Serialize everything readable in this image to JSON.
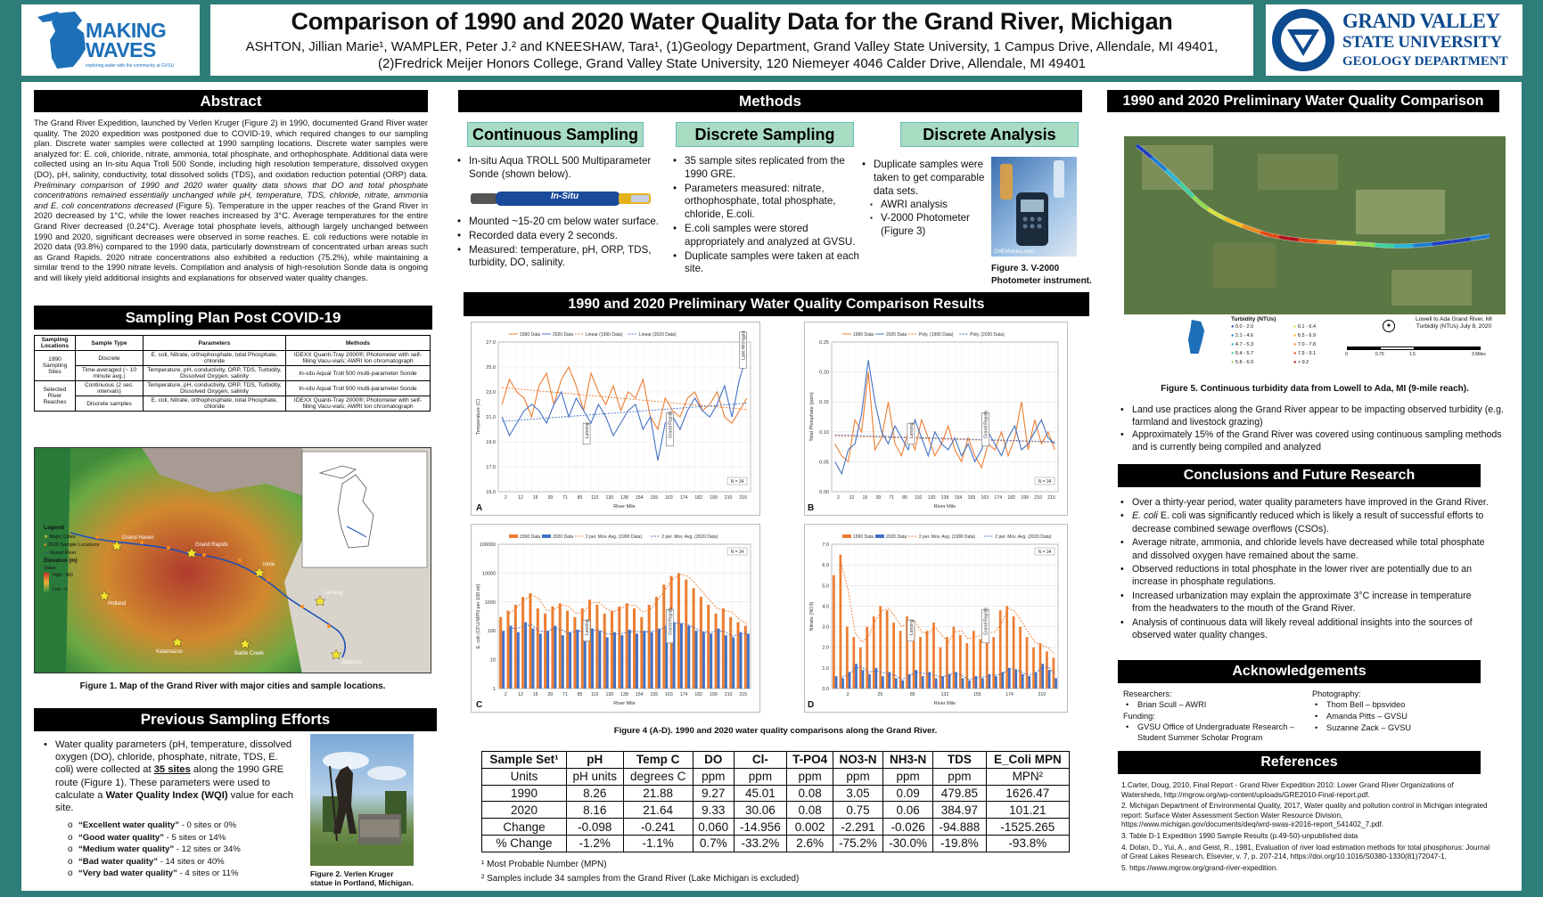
{
  "header": {
    "title": "Comparison of 1990 and 2020 Water Quality Data for the Grand River, Michigan",
    "authors": "ASHTON, Jillian Marie¹, WAMPLER, Peter J.² and KNEESHAW, Tara¹, (1)Geology Department, Grand Valley State University, 1 Campus Drive, Allendale, MI 49401,",
    "affil": "(2)Fredrick Meijer Honors College, Grand Valley State University, 120 Niemeyer 4046 Calder Drive, Allendale, MI 49401",
    "logo_left": "MAKING WAVES",
    "logo_left_small": "exploring water with the community at GVSU",
    "logo_right_1": "GRAND VALLEY",
    "logo_right_2": "STATE UNIVERSITY",
    "logo_right_3": "GEOLOGY DEPARTMENT"
  },
  "abstract": {
    "heading": "Abstract",
    "p1": "The Grand River Expedition, launched by Verlen Kruger (Figure 2) in 1990, documented Grand River water quality. The 2020 expedition was postponed due to COVID-19, which required changes to our sampling plan. Discrete water samples were collected at 1990 sampling locations. Discrete water samples were analyzed for: E. coli, chloride, nitrate, ammonia, total phosphate, and orthophosphate. Additional data were collected using an In-situ Aqua Troll 500 Sonde, including high resolution temperature, dissolved oxygen (DO), pH, salinity, conductivity, total dissolved solids (TDS), and oxidation reduction potential (ORP) data.",
    "p2": "Preliminary comparison of 1990 and 2020 water quality data shows that DO and total phosphate concentrations remained essentially unchanged while pH, temperature, TDS, chloride, nitrate, ammonia and E. coli concentrations decreased",
    "p3": "(Figure 5). Temperature in the upper reaches of the Grand River in 2020 decreased by 1°C, while the lower reaches increased by 3°C. Average temperatures for the entire Grand River decreased (0.24°C). Average total phosphate levels, although largely unchanged between 1990 and 2020, significant decreases were observed in some reaches. E. coli reductions were notable in 2020 data (93.8%) compared to the 1990 data, particularly downstream of concentrated urban areas such as Grand Rapids. 2020 nitrate concentrations also exhibited a reduction (75.2%), while maintaining a similar trend to the 1990 nitrate levels. Compilation and analysis of high-resolution Sonde data is ongoing and will likely yield additional insights and explanations for observed water quality changes."
  },
  "plan": {
    "heading": "Sampling Plan Post COVID-19",
    "cols": [
      "Sampling Locations",
      "Sample Type",
      "Parameters",
      "Methods"
    ],
    "g1": "1990 Sampling Sites",
    "g2": "Selected River Reaches",
    "r1": [
      "Discrete",
      "E. coli, Nitrate, orthophosphate, total Phosphate, chloride",
      "IDEXX Quanti-Tray 2000®; Photometer with self-filling Vacu-vials; AWRI Ion chromatograph"
    ],
    "r2": [
      "Time-averaged (~ 10 minute avg.)",
      "Temperature, pH, conductivity, ORP, TDS, Turbidity, Dissolved Oxygen, salinity",
      "In-situ Aqual Troll 500 multi-parameter Sonde"
    ],
    "r3": [
      "Continuous (2 sec. intervals)",
      "Temperature, pH, conductivity, ORP, TDS, Turbidity, Dissolved Oxygen, salinity",
      "In-situ Aqual Troll 500 multi-parameter Sonde"
    ],
    "r4": [
      "Discrete samples",
      "E. coli, Nitrate, orthophosphate, total Phosphate, chloride",
      "IDEXX Quanti-Tray 2000®; Photometer with self-filling Vacu-vials; AWRI Ion chromatograph"
    ]
  },
  "fig1": {
    "caption": "Figure 1. Map of the Grand River with major cities and sample locations.",
    "legend_title": "Legend",
    "legend_items": [
      "Major Cities",
      "2020 Sample Locations",
      "Grand River"
    ],
    "elev_title": "Elevation (m)",
    "elev_value": "Value",
    "elev_high": "High : 460",
    "elev_low": "Low : 0",
    "cities": [
      "Grand Haven",
      "Grand Rapids",
      "Ionia",
      "Lansing",
      "Holland",
      "Kalamazoo",
      "Battle Creek",
      "Jackson"
    ]
  },
  "prev": {
    "heading": "Previous Sampling Efforts",
    "p_a": "Water quality parameters (pH, temperature, dissolved oxygen (DO), chloride, phosphate, nitrate, TDS, E. coli) were collected at ",
    "p_b": "35 sites",
    "p_c": " along the 1990 GRE route (Figure 1). These parameters were used to calculate a ",
    "p_d": "Water Quality Index (WQI)",
    "p_e": " value for each site.",
    "items": [
      {
        "q": "“Excellent water quality”",
        "r": " - 0 sites or 0%"
      },
      {
        "q": "“Good water quality”",
        "r": " - 5 sites or 14%"
      },
      {
        "q": "“Medium water quality”",
        "r": " - 12 sites or 34%"
      },
      {
        "q": "“Bad water quality”",
        "r": " - 14 sites or 40%"
      },
      {
        "q": "“Very bad water quality”",
        "r": " - 4 sites or 11%"
      }
    ],
    "fig2_caption": "Figure 2. Verlen Kruger statue in Portland, Michigan."
  },
  "methods": {
    "heading": "Methods",
    "cont_h": "Continuous Sampling",
    "disc_h": "Discrete Sampling",
    "anal_h": "Discrete Analysis",
    "cont_1": "In-situ Aqua TROLL 500 Multiparameter Sonde (shown below).",
    "sonde_label": "In-Situ",
    "cont_items": [
      "Mounted ~15-20 cm below water surface.",
      "Recorded data every 2 seconds.",
      "Measured: temperature, pH, ORP, TDS, turbidity, DO, salinity."
    ],
    "disc_items": [
      "35 sample sites replicated from the 1990 GRE.",
      "Parameters measured: nitrate, orthophosphate, total phosphate, chloride, E.coli.",
      "E.coli samples were stored appropriately and analyzed at GVSU.",
      "Duplicate samples were taken at each site."
    ],
    "anal_1": "Duplicate samples were taken to get comparable data sets.",
    "anal_sub": [
      "AWRI analysis",
      "V-2000 Photometer (Figure 3)"
    ],
    "photo_label": "CHEMetrics.com",
    "fig3_caption": "Figure 3. V-2000 Photometer instrument."
  },
  "results": {
    "heading": "1990 and 2020 Preliminary Water Quality Comparison Results",
    "fig4_caption": "Figure 4 (A-D). 1990 and 2020 water quality comparisons along the Grand River.",
    "note1": "¹ Most Probable Number (MPN)",
    "note2": "² Samples include 34 samples from the Grand River (Lake Michigan is excluded)",
    "table": {
      "header": [
        "Sample Set¹",
        "pH",
        "Temp C",
        "DO",
        "Cl-",
        "T-PO4",
        "NO3-N",
        "NH3-N",
        "TDS",
        "E_Coli MPN"
      ],
      "rows": [
        [
          "Units",
          "pH units",
          "degrees C",
          "ppm",
          "ppm",
          "ppm",
          "ppm",
          "ppm",
          "ppm",
          "MPN²"
        ],
        [
          "1990",
          "8.26",
          "21.88",
          "9.27",
          "45.01",
          "0.08",
          "3.05",
          "0.09",
          "479.85",
          "1626.47"
        ],
        [
          "2020",
          "8.16",
          "21.64",
          "9.33",
          "30.06",
          "0.08",
          "0.75",
          "0.06",
          "384.97",
          "101.21"
        ],
        [
          "Change",
          "-0.098",
          "-0.241",
          "0.060",
          "-14.956",
          "0.002",
          "-2.291",
          "-0.026",
          "-94.888",
          "-1525.265"
        ],
        [
          "% Change",
          "-1.2%",
          "-1.1%",
          "0.7%",
          "-33.2%",
          "2.6%",
          "-75.2%",
          "-30.0%",
          "-19.8%",
          "-93.8%"
        ]
      ]
    }
  },
  "chart_data": [
    {
      "type": "line",
      "panel": "A",
      "xlabel": "River Mile",
      "ylabel": "Temperature (C)",
      "ylim": [
        15.0,
        27.0
      ],
      "yticks": [
        "15.0",
        "17.0",
        "19.0",
        "21.0",
        "23.0",
        "25.0",
        "27.0"
      ],
      "xticks": [
        "2",
        "12",
        "15",
        "39",
        "71",
        "85",
        "110",
        "130",
        "138",
        "154",
        "155",
        "163",
        "174",
        "182",
        "199",
        "210",
        "215"
      ],
      "legend": [
        "1990 Data",
        "2020 Data",
        "Linear (1990 Data)",
        "Linear (2020 Data)"
      ],
      "n_label": "N = 34",
      "annotations": [
        "Lansing",
        "Grand Rapids",
        "Lake Michigan"
      ],
      "series": [
        {
          "name": "1990 Data",
          "values": [
            22.0,
            24.0,
            23.0,
            22.5,
            21.0,
            23.5,
            24.5,
            22.0,
            24.0,
            25.0,
            23.5,
            21.5,
            24.5,
            23.0,
            22.0,
            23.5,
            21.5,
            23.0,
            22.5,
            24.0,
            21.0,
            20.0,
            22.5,
            21.5,
            21.0,
            22.5,
            23.0,
            21.5,
            22.0,
            23.0,
            21.0,
            20.5,
            21.5,
            22.5
          ]
        },
        {
          "name": "2020 Data",
          "values": [
            21.0,
            19.5,
            20.5,
            21.5,
            22.0,
            21.5,
            20.5,
            22.0,
            23.0,
            21.0,
            22.5,
            21.5,
            20.5,
            22.0,
            21.0,
            19.5,
            20.5,
            21.5,
            22.0,
            20.0,
            21.0,
            17.5,
            20.5,
            21.0,
            20.0,
            21.5,
            22.5,
            21.5,
            21.0,
            22.0,
            23.5,
            21.0,
            24.0,
            26.0
          ]
        }
      ]
    },
    {
      "type": "line",
      "panel": "B",
      "xlabel": "River Mile",
      "ylabel": "Total Phosphate (ppm)",
      "ylim": [
        0.0,
        0.25
      ],
      "yticks": [
        "0.00",
        "0.05",
        "0.10",
        "0.15",
        "0.20",
        "0.25"
      ],
      "xticks": [
        "2",
        "12",
        "15",
        "39",
        "71",
        "85",
        "110",
        "130",
        "138",
        "154",
        "155",
        "163",
        "174",
        "182",
        "199",
        "210",
        "215"
      ],
      "legend": [
        "1990 Data",
        "2020 Data",
        "Poly. (1990 Data)",
        "Poly. (2020 Data)"
      ],
      "n_label": "N = 34",
      "annotations": [
        "Lansing",
        "Grand Rapids"
      ],
      "series": [
        {
          "name": "1990 Data",
          "values": [
            0.08,
            0.06,
            0.05,
            0.12,
            0.1,
            0.2,
            0.07,
            0.09,
            0.15,
            0.08,
            0.06,
            0.1,
            0.07,
            0.12,
            0.09,
            0.06,
            0.08,
            0.11,
            0.07,
            0.05,
            0.09,
            0.06,
            0.04,
            0.08,
            0.07,
            0.1,
            0.06,
            0.09,
            0.15,
            0.07,
            0.12,
            0.08,
            0.1,
            0.07
          ]
        },
        {
          "name": "2020 Data",
          "values": [
            0.05,
            0.03,
            0.07,
            0.08,
            0.13,
            0.22,
            0.15,
            0.1,
            0.08,
            0.11,
            0.09,
            0.07,
            0.12,
            0.09,
            0.06,
            0.1,
            0.08,
            0.07,
            0.09,
            0.06,
            0.08,
            0.05,
            0.07,
            0.1,
            0.08,
            0.06,
            0.09,
            0.11,
            0.07,
            0.08,
            0.1,
            0.12,
            0.09,
            0.08
          ]
        }
      ]
    },
    {
      "type": "bar",
      "panel": "C",
      "xlabel": "River Mile",
      "ylabel": "E. coli (CFU/MPN per 100 ml)",
      "yscale": "log",
      "ylim": [
        1,
        100000
      ],
      "yticks": [
        "1",
        "10",
        "100",
        "1000",
        "10000",
        "100000"
      ],
      "xticks": [
        "2",
        "12",
        "15",
        "39",
        "71",
        "85",
        "110",
        "130",
        "138",
        "154",
        "155",
        "163",
        "174",
        "182",
        "199",
        "210",
        "215"
      ],
      "legend": [
        "1990 Data",
        "2020 Data",
        "2 per. Mov. Avg. (1990 Data)",
        "2 per. Mov. Avg. (2020 Data)"
      ],
      "n_label": "N = 34",
      "annotations": [
        "Lansing",
        "Grand Rapids"
      ],
      "series": [
        {
          "name": "1990 Data",
          "values": [
            300,
            500,
            800,
            1500,
            2000,
            600,
            400,
            700,
            900,
            500,
            300,
            600,
            1200,
            800,
            400,
            500,
            700,
            900,
            600,
            300,
            800,
            1500,
            4000,
            8000,
            10000,
            6000,
            3000,
            1500,
            800,
            400,
            600,
            300,
            200,
            150
          ]
        },
        {
          "name": "2020 Data",
          "values": [
            100,
            150,
            90,
            200,
            120,
            80,
            100,
            150,
            70,
            90,
            110,
            80,
            120,
            100,
            60,
            90,
            70,
            110,
            80,
            100,
            90,
            120,
            150,
            200,
            180,
            150,
            100,
            90,
            80,
            120,
            70,
            60,
            90,
            80
          ]
        }
      ]
    },
    {
      "type": "bar",
      "panel": "D",
      "xlabel": "River Mile",
      "ylabel": "Nitrate (NO3)",
      "ylim": [
        0.0,
        7.0
      ],
      "yticks": [
        "0.0",
        "1.0",
        "2.0",
        "3.0",
        "4.0",
        "5.0",
        "6.0",
        "7.0"
      ],
      "xticks": [
        "2",
        "25",
        "85",
        "132",
        "155",
        "174",
        "210"
      ],
      "legend": [
        "1990 Data",
        "2020 Data",
        "2 per. Mov. Avg. (1990 Data)",
        "2 per. Mov. Avg. (2020 Data)"
      ],
      "n_label": "N = 34",
      "annotations": [
        "Lansing",
        "Grand Rapids"
      ],
      "series": [
        {
          "name": "1990 Data",
          "values": [
            5.5,
            6.5,
            3.0,
            2.5,
            2.0,
            3.0,
            3.5,
            4.0,
            3.8,
            3.2,
            2.8,
            3.5,
            3.0,
            2.5,
            2.8,
            3.2,
            2.0,
            2.5,
            3.0,
            2.6,
            2.2,
            2.8,
            2.4,
            3.0,
            2.5,
            3.8,
            4.0,
            3.5,
            3.0,
            2.5,
            2.0,
            2.2,
            1.8,
            1.5
          ]
        },
        {
          "name": "2020 Data",
          "values": [
            0.6,
            0.5,
            0.8,
            1.2,
            0.9,
            0.7,
            1.0,
            0.6,
            0.8,
            0.5,
            0.4,
            0.7,
            0.9,
            0.6,
            0.8,
            0.5,
            0.6,
            0.7,
            0.8,
            0.5,
            0.4,
            0.6,
            0.5,
            0.7,
            0.6,
            0.8,
            1.0,
            0.9,
            0.7,
            0.6,
            0.8,
            1.2,
            0.9,
            0.5
          ]
        }
      ]
    }
  ],
  "fig5": {
    "heading": "1990 and 2020 Preliminary Water Quality Comparison",
    "caption": "Figure 5. Continuous turbidity data from Lowell to Ada, MI (9-mile reach).",
    "legend_title": "Turbidity (NTUs)",
    "legend_items": [
      "0.0 - 2.0",
      "2.1 - 4.6",
      "4.7 - 5.3",
      "5.4 - 5.7",
      "5.8 - 6.0",
      "6.1 - 6.4",
      "6.5 - 6.9",
      "7.0 - 7.8",
      "7.9 - 9.1",
      "> 9.2"
    ],
    "legend_colors": [
      "#1f3fbf",
      "#1c7bd6",
      "#23b7d8",
      "#3bd1a0",
      "#8fdc4a",
      "#d6e23a",
      "#f3c21c",
      "#f08a1a",
      "#e24a12",
      "#b3131b"
    ],
    "map_title": "Lowell to Ada Grand River, MI Turbidity (NTUs) July 8, 2020",
    "scale_ticks": [
      "0",
      "0.75",
      "1.5",
      "3 Miles"
    ],
    "bullets": [
      "Land use practices along the Grand River appear to be impacting observed turbidity (e.g. farmland and livestock grazing)",
      "Approximately 15% of the Grand River was covered using continuous sampling methods and is currently being compiled and analyzed"
    ]
  },
  "conclusions": {
    "heading": "Conclusions and Future Research",
    "items": [
      "Over a thirty-year period, water quality parameters have improved in the Grand River.",
      "E. coli was significantly reduced which is likely a result of successful efforts to decrease combined sewage overflows (CSOs).",
      "Average nitrate, ammonia, and chloride levels have decreased while total phosphate and dissolved oxygen have remained about the same.",
      "Observed reductions in total phosphate in the lower river are potentially due to an increase in phosphate regulations.",
      "Increased urbanization may explain the approximate 3°C increase in temperature from the headwaters to the mouth of the Grand River.",
      "Analysis of continuous data will likely reveal additional insights into the sources of observed water quality changes."
    ]
  },
  "ack": {
    "heading": "Acknowledgements",
    "researchers_h": "Researchers:",
    "researchers": [
      "Brian Scull – AWRI"
    ],
    "funding_h": "Funding:",
    "funding": [
      "GVSU Office of Undergraduate Research – Student Summer Scholar Program"
    ],
    "photo_h": "Photography:",
    "photo": [
      "Thom Bell – bpsvideo",
      "Amanda Pitts – GVSU",
      "Suzanne Zack – GVSU"
    ]
  },
  "refs": {
    "heading": "References",
    "items": [
      "1.Carter, Doug, 2010, Final Report - Grand River Expedition 2010: Lower Grand River Organizations of Watersheds, http://mgrow.org/wp-content/uploads/GRE2010-Final-report.pdf.",
      "2. Michigan Department of Environmental Quality, 2017, Water quality and pollution control in Michigan integrated report: Surface Water Assessment Section Water Resource Division, https://www.michigan.gov/documents/deq/wrd-swas-ir2016-report_541402_7.pdf.",
      "3. Table D-1 Expedition 1990 Sample Results (p.49-50)-unpublished data",
      "4. Dolan, D., Yui, A., and Geist, R., 1981, Evaluation of river load estimation methods for total phosphorus: Journal of Great Lakes Research, Elsevier, v. 7, p. 207-214, https://doi.org/10.1016/S0380-1330(81)72047-1.",
      "5. https://www.mgrow.org/grand-river-expedition."
    ]
  },
  "colors": {
    "bg": "#2e7d79",
    "accent": "#a8dcc3",
    "orange": "#ed7d31",
    "blue": "#4472c4",
    "gvsu": "#0d4a8f"
  }
}
